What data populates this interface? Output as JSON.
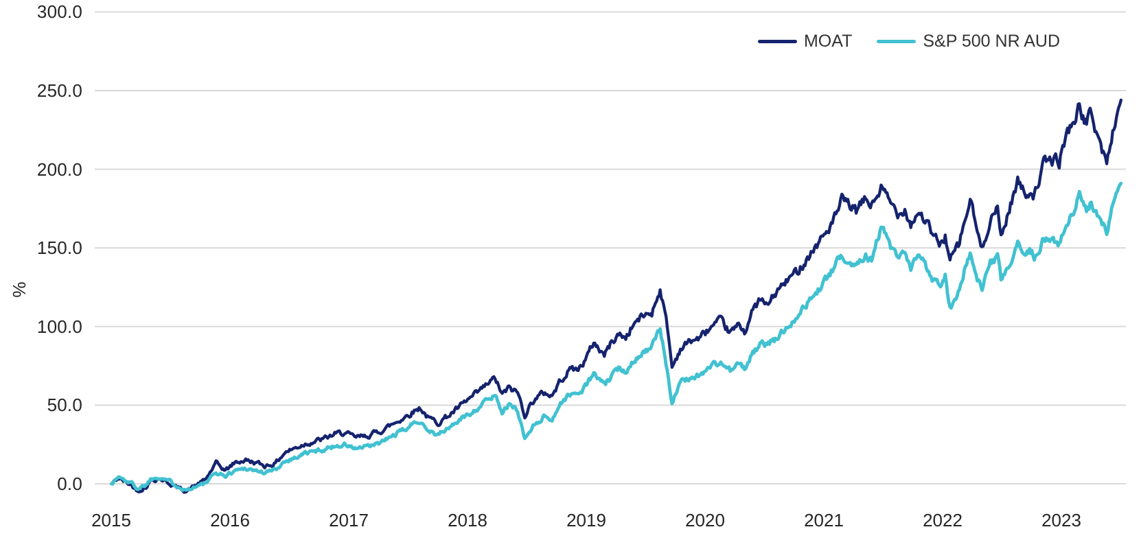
{
  "chart_data": {
    "type": "line",
    "title": "",
    "ylabel": "%",
    "grid": "horizontal",
    "legend_position": "top-right",
    "x_domain_years": [
      2015.44,
      2024.0
    ],
    "ylim_gridlines": [
      0,
      300
    ],
    "y_ticks": [
      {
        "value": 0,
        "label": "0.0"
      },
      {
        "value": 50,
        "label": "50.0"
      },
      {
        "value": 100,
        "label": "100.0"
      },
      {
        "value": 150,
        "label": "150.0"
      },
      {
        "value": 200,
        "label": "200.0"
      },
      {
        "value": 250,
        "label": "250.0"
      },
      {
        "value": 300,
        "label": "300.0"
      }
    ],
    "x_ticks": [
      {
        "t": 2015.5,
        "label": "2015"
      },
      {
        "t": 2016.5,
        "label": "2016"
      },
      {
        "t": 2017.5,
        "label": "2017"
      },
      {
        "t": 2018.5,
        "label": "2018"
      },
      {
        "t": 2019.5,
        "label": "2019"
      },
      {
        "t": 2020.5,
        "label": "2020"
      },
      {
        "t": 2021.5,
        "label": "2021"
      },
      {
        "t": 2022.5,
        "label": "2022"
      },
      {
        "t": 2023.5,
        "label": "2023"
      }
    ],
    "series": [
      {
        "name": "MOAT",
        "color": "#15236e",
        "points": [
          [
            2015.5,
            0
          ],
          [
            2015.56,
            3.5
          ],
          [
            2015.62,
            1
          ],
          [
            2015.67,
            -1
          ],
          [
            2015.72,
            -4.5
          ],
          [
            2015.79,
            -2
          ],
          [
            2015.83,
            2
          ],
          [
            2015.9,
            3.5
          ],
          [
            2015.96,
            1.5
          ],
          [
            2016.04,
            -2
          ],
          [
            2016.13,
            -4.5
          ],
          [
            2016.21,
            -1
          ],
          [
            2016.29,
            2.5
          ],
          [
            2016.38,
            13
          ],
          [
            2016.46,
            8.5
          ],
          [
            2016.54,
            13.5
          ],
          [
            2016.63,
            15
          ],
          [
            2016.71,
            13.5
          ],
          [
            2016.79,
            11.5
          ],
          [
            2016.88,
            13
          ],
          [
            2016.96,
            20
          ],
          [
            2017.04,
            22.5
          ],
          [
            2017.13,
            25.5
          ],
          [
            2017.21,
            27
          ],
          [
            2017.29,
            28.5
          ],
          [
            2017.38,
            31.5
          ],
          [
            2017.46,
            32.5
          ],
          [
            2017.54,
            29.5
          ],
          [
            2017.63,
            30
          ],
          [
            2017.71,
            32
          ],
          [
            2017.79,
            34.5
          ],
          [
            2017.88,
            38.5
          ],
          [
            2017.96,
            42
          ],
          [
            2018.04,
            46
          ],
          [
            2018.1,
            48.5
          ],
          [
            2018.17,
            41.5
          ],
          [
            2018.25,
            39
          ],
          [
            2018.33,
            43
          ],
          [
            2018.42,
            48
          ],
          [
            2018.5,
            53
          ],
          [
            2018.58,
            57.5
          ],
          [
            2018.67,
            63.5
          ],
          [
            2018.73,
            67
          ],
          [
            2018.79,
            56.5
          ],
          [
            2018.85,
            61
          ],
          [
            2018.92,
            58
          ],
          [
            2018.98,
            44
          ],
          [
            2019.06,
            54
          ],
          [
            2019.15,
            58
          ],
          [
            2019.21,
            56
          ],
          [
            2019.29,
            67
          ],
          [
            2019.38,
            74
          ],
          [
            2019.42,
            72
          ],
          [
            2019.5,
            80
          ],
          [
            2019.56,
            90
          ],
          [
            2019.65,
            82
          ],
          [
            2019.71,
            90
          ],
          [
            2019.77,
            95
          ],
          [
            2019.83,
            93
          ],
          [
            2019.9,
            102
          ],
          [
            2019.98,
            107
          ],
          [
            2020.05,
            109
          ],
          [
            2020.12,
            124
          ],
          [
            2020.18,
            100
          ],
          [
            2020.22,
            74
          ],
          [
            2020.29,
            86
          ],
          [
            2020.38,
            91
          ],
          [
            2020.46,
            93
          ],
          [
            2020.54,
            99
          ],
          [
            2020.63,
            103
          ],
          [
            2020.71,
            96
          ],
          [
            2020.79,
            101
          ],
          [
            2020.83,
            97
          ],
          [
            2020.9,
            110
          ],
          [
            2020.96,
            117
          ],
          [
            2021.02,
            113
          ],
          [
            2021.1,
            122
          ],
          [
            2021.19,
            129
          ],
          [
            2021.27,
            135
          ],
          [
            2021.35,
            143
          ],
          [
            2021.44,
            152
          ],
          [
            2021.52,
            160
          ],
          [
            2021.6,
            170
          ],
          [
            2021.65,
            180
          ],
          [
            2021.73,
            176
          ],
          [
            2021.77,
            173
          ],
          [
            2021.85,
            181
          ],
          [
            2021.9,
            177
          ],
          [
            2021.98,
            188
          ],
          [
            2022.06,
            178
          ],
          [
            2022.13,
            172
          ],
          [
            2022.18,
            176
          ],
          [
            2022.23,
            165
          ],
          [
            2022.29,
            173
          ],
          [
            2022.35,
            168
          ],
          [
            2022.42,
            157
          ],
          [
            2022.48,
            152
          ],
          [
            2022.52,
            158
          ],
          [
            2022.56,
            142
          ],
          [
            2022.63,
            151
          ],
          [
            2022.69,
            168
          ],
          [
            2022.73,
            181
          ],
          [
            2022.79,
            160
          ],
          [
            2022.83,
            148
          ],
          [
            2022.9,
            170
          ],
          [
            2022.96,
            174
          ],
          [
            2022.99,
            157
          ],
          [
            2023.08,
            180
          ],
          [
            2023.13,
            193
          ],
          [
            2023.19,
            184
          ],
          [
            2023.23,
            187
          ],
          [
            2023.27,
            184
          ],
          [
            2023.35,
            203
          ],
          [
            2023.42,
            206
          ],
          [
            2023.48,
            205
          ],
          [
            2023.54,
            222
          ],
          [
            2023.6,
            231
          ],
          [
            2023.65,
            239
          ],
          [
            2023.71,
            229
          ],
          [
            2023.75,
            236
          ],
          [
            2023.81,
            220
          ],
          [
            2023.88,
            203
          ],
          [
            2023.92,
            220
          ],
          [
            2023.96,
            233
          ],
          [
            2024.0,
            244
          ]
        ]
      },
      {
        "name": "S&P 500 NR AUD",
        "color": "#41c1d1",
        "points": [
          [
            2015.5,
            0
          ],
          [
            2015.56,
            4.5
          ],
          [
            2015.62,
            2
          ],
          [
            2015.67,
            0.5
          ],
          [
            2015.72,
            -3
          ],
          [
            2015.79,
            -0.5
          ],
          [
            2015.83,
            3
          ],
          [
            2015.9,
            4.5
          ],
          [
            2015.96,
            3
          ],
          [
            2016.04,
            -0.5
          ],
          [
            2016.13,
            -4
          ],
          [
            2016.21,
            -1.5
          ],
          [
            2016.29,
            0
          ],
          [
            2016.38,
            7
          ],
          [
            2016.46,
            5
          ],
          [
            2016.54,
            8.5
          ],
          [
            2016.63,
            10
          ],
          [
            2016.71,
            8.5
          ],
          [
            2016.79,
            7
          ],
          [
            2016.88,
            9
          ],
          [
            2016.96,
            14.5
          ],
          [
            2017.04,
            16.5
          ],
          [
            2017.13,
            19.5
          ],
          [
            2017.21,
            20.5
          ],
          [
            2017.29,
            22
          ],
          [
            2017.38,
            24
          ],
          [
            2017.46,
            25
          ],
          [
            2017.54,
            22.5
          ],
          [
            2017.63,
            23
          ],
          [
            2017.71,
            24.5
          ],
          [
            2017.79,
            27
          ],
          [
            2017.88,
            31
          ],
          [
            2017.96,
            34
          ],
          [
            2018.04,
            38
          ],
          [
            2018.1,
            40.5
          ],
          [
            2018.17,
            34
          ],
          [
            2018.25,
            31
          ],
          [
            2018.33,
            35
          ],
          [
            2018.42,
            40
          ],
          [
            2018.5,
            44
          ],
          [
            2018.58,
            48
          ],
          [
            2018.67,
            53.5
          ],
          [
            2018.73,
            56.5
          ],
          [
            2018.79,
            46.5
          ],
          [
            2018.85,
            50
          ],
          [
            2018.92,
            47
          ],
          [
            2018.98,
            28.5
          ],
          [
            2019.06,
            38
          ],
          [
            2019.15,
            43
          ],
          [
            2019.21,
            41
          ],
          [
            2019.29,
            52
          ],
          [
            2019.38,
            58
          ],
          [
            2019.42,
            56
          ],
          [
            2019.5,
            63
          ],
          [
            2019.56,
            70
          ],
          [
            2019.65,
            62.5
          ],
          [
            2019.71,
            68
          ],
          [
            2019.77,
            73
          ],
          [
            2019.83,
            72
          ],
          [
            2019.9,
            79
          ],
          [
            2019.98,
            84
          ],
          [
            2020.05,
            87
          ],
          [
            2020.12,
            98
          ],
          [
            2020.18,
            72
          ],
          [
            2020.22,
            52
          ],
          [
            2020.29,
            64
          ],
          [
            2020.38,
            68
          ],
          [
            2020.46,
            69
          ],
          [
            2020.54,
            75
          ],
          [
            2020.63,
            77
          ],
          [
            2020.71,
            72
          ],
          [
            2020.79,
            76
          ],
          [
            2020.83,
            73
          ],
          [
            2020.9,
            83
          ],
          [
            2020.96,
            88
          ],
          [
            2021.02,
            89
          ],
          [
            2021.1,
            92
          ],
          [
            2021.19,
            100
          ],
          [
            2021.27,
            107
          ],
          [
            2021.35,
            114
          ],
          [
            2021.44,
            122
          ],
          [
            2021.52,
            130
          ],
          [
            2021.6,
            139
          ],
          [
            2021.65,
            146
          ],
          [
            2021.73,
            140
          ],
          [
            2021.77,
            139
          ],
          [
            2021.85,
            147
          ],
          [
            2021.9,
            142
          ],
          [
            2021.98,
            164
          ],
          [
            2022.06,
            150
          ],
          [
            2022.13,
            142
          ],
          [
            2022.18,
            146
          ],
          [
            2022.23,
            136
          ],
          [
            2022.29,
            145
          ],
          [
            2022.35,
            140
          ],
          [
            2022.42,
            130
          ],
          [
            2022.48,
            127
          ],
          [
            2022.52,
            133
          ],
          [
            2022.56,
            112
          ],
          [
            2022.63,
            121
          ],
          [
            2022.69,
            138
          ],
          [
            2022.73,
            146
          ],
          [
            2022.79,
            128
          ],
          [
            2022.83,
            124
          ],
          [
            2022.9,
            140
          ],
          [
            2022.96,
            143
          ],
          [
            2022.99,
            129
          ],
          [
            2023.08,
            142
          ],
          [
            2023.13,
            151
          ],
          [
            2023.19,
            146
          ],
          [
            2023.23,
            149
          ],
          [
            2023.27,
            145
          ],
          [
            2023.35,
            155
          ],
          [
            2023.42,
            157
          ],
          [
            2023.48,
            152
          ],
          [
            2023.54,
            164
          ],
          [
            2023.6,
            172
          ],
          [
            2023.65,
            184
          ],
          [
            2023.71,
            172
          ],
          [
            2023.75,
            178
          ],
          [
            2023.81,
            168
          ],
          [
            2023.88,
            161
          ],
          [
            2023.92,
            176
          ],
          [
            2023.96,
            184
          ],
          [
            2024.0,
            191
          ]
        ]
      }
    ]
  }
}
